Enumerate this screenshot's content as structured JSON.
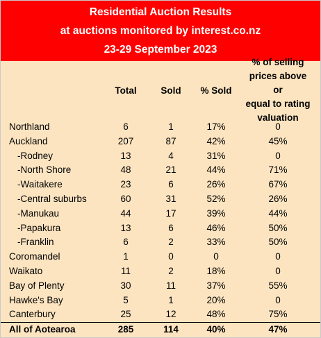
{
  "header": {
    "line1": "Residential Auction Results",
    "line2": "at auctions monitored by interest.co.nz",
    "line3": "23-29 September 2023"
  },
  "columns": {
    "total": "Total",
    "sold": "Sold",
    "pct_sold": "% Sold",
    "valuation": [
      "% of selling",
      "prices above or",
      "equal to rating",
      "valuation"
    ]
  },
  "rows": [
    {
      "name": "Northland",
      "total": "6",
      "sold": "1",
      "pct_sold": "17%",
      "valuation": "0",
      "sub": false
    },
    {
      "name": "Auckland",
      "total": "207",
      "sold": "87",
      "pct_sold": "42%",
      "valuation": "45%",
      "sub": false
    },
    {
      "name": "-Rodney",
      "total": "13",
      "sold": "4",
      "pct_sold": "31%",
      "valuation": "0",
      "sub": true
    },
    {
      "name": "-North Shore",
      "total": "48",
      "sold": "21",
      "pct_sold": "44%",
      "valuation": "71%",
      "sub": true
    },
    {
      "name": "-Waitakere",
      "total": "23",
      "sold": "6",
      "pct_sold": "26%",
      "valuation": "67%",
      "sub": true
    },
    {
      "name": "-Central suburbs",
      "total": "60",
      "sold": "31",
      "pct_sold": "52%",
      "valuation": "26%",
      "sub": true
    },
    {
      "name": "-Manukau",
      "total": "44",
      "sold": "17",
      "pct_sold": "39%",
      "valuation": "44%",
      "sub": true
    },
    {
      "name": "-Papakura",
      "total": "13",
      "sold": "6",
      "pct_sold": "46%",
      "valuation": "50%",
      "sub": true
    },
    {
      "name": "-Franklin",
      "total": "6",
      "sold": "2",
      "pct_sold": "33%",
      "valuation": "50%",
      "sub": true
    },
    {
      "name": "Coromandel",
      "total": "1",
      "sold": "0",
      "pct_sold": "0",
      "valuation": "0",
      "sub": false
    },
    {
      "name": "Waikato",
      "total": "11",
      "sold": "2",
      "pct_sold": "18%",
      "valuation": "0",
      "sub": false
    },
    {
      "name": "Bay of Plenty",
      "total": "30",
      "sold": "11",
      "pct_sold": "37%",
      "valuation": "55%",
      "sub": false
    },
    {
      "name": "Hawke's Bay",
      "total": "5",
      "sold": "1",
      "pct_sold": "20%",
      "valuation": "0",
      "sub": false
    },
    {
      "name": "Canterbury",
      "total": "25",
      "sold": "12",
      "pct_sold": "48%",
      "valuation": "75%",
      "sub": false
    }
  ],
  "total_row": {
    "name": "All of Aotearoa",
    "total": "285",
    "sold": "114",
    "pct_sold": "40%",
    "valuation": "47%"
  },
  "colors": {
    "header_bg": "#ff0000",
    "header_text": "#ffffff",
    "table_bg": "#fce4c0"
  }
}
